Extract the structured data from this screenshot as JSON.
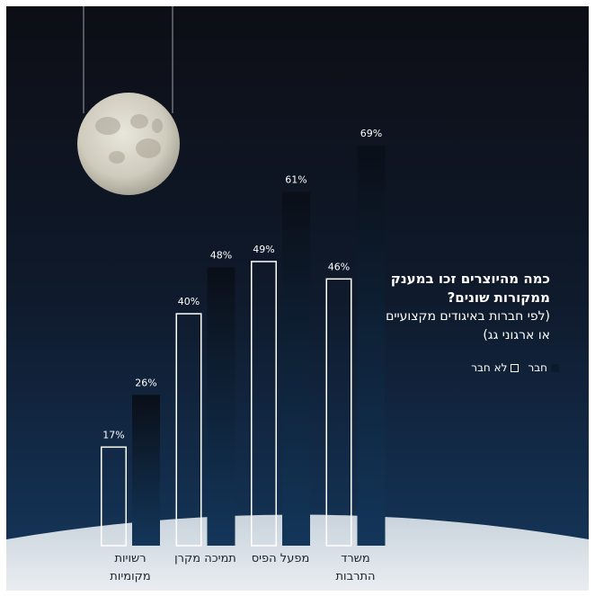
{
  "chart_data": {
    "type": "bar",
    "title": "כמה מהיוצרים זכו במענק ממקורות שונים?",
    "subtitle": "(לפי חברות באיגודים מקצועיים או ארגוני גג)",
    "categories": [
      "רשויות מקומיות",
      "תמיכה מקרן",
      "מפעל הפיס",
      "משרד התרבות"
    ],
    "series": [
      {
        "name": "לא חבר",
        "color": "#ffffff",
        "values": [
          17,
          40,
          49,
          46
        ],
        "value_labels": [
          "17%",
          "40%",
          "49%",
          "46%"
        ]
      },
      {
        "name": "חבר",
        "color": "#0c1a2d",
        "values": [
          26,
          48,
          61,
          69
        ],
        "value_labels": [
          "26%",
          "48%",
          "61%",
          "69%"
        ]
      }
    ]
  }
}
